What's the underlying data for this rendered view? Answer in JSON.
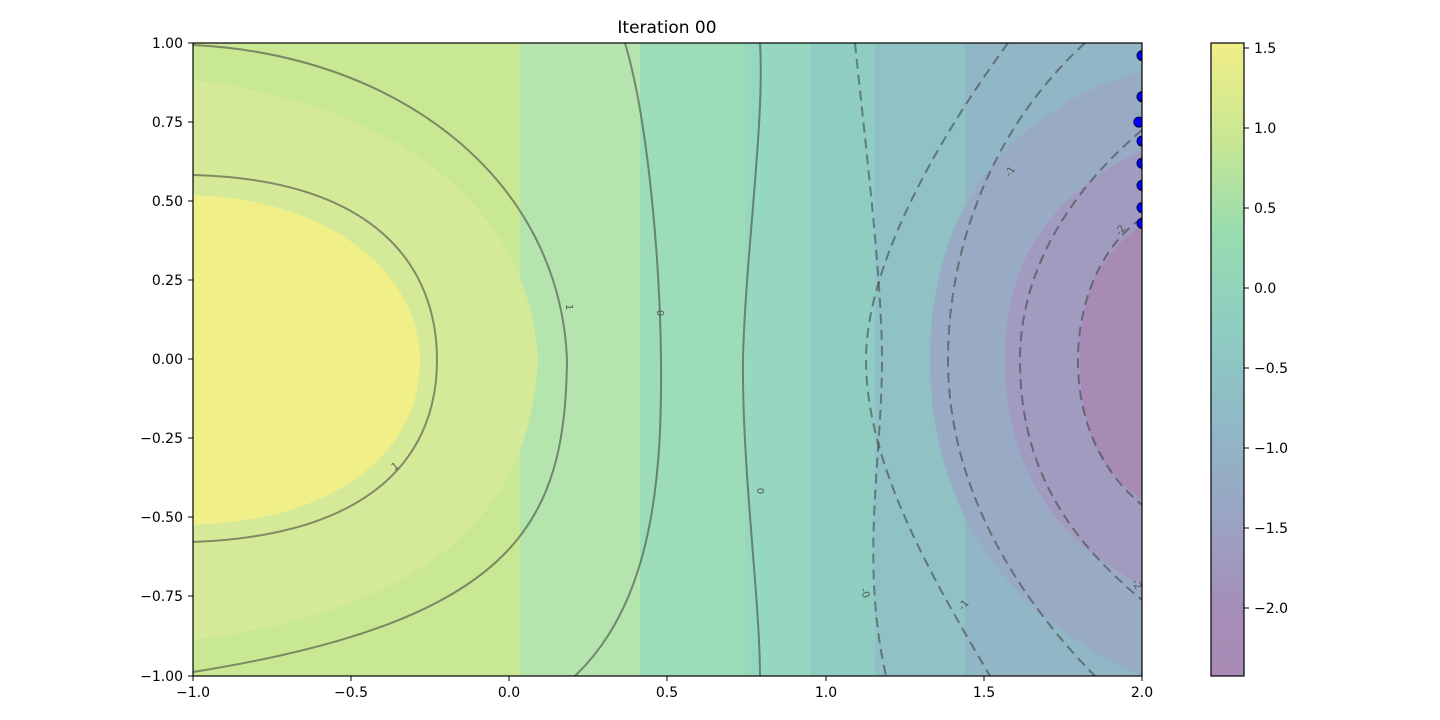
{
  "chart_data": {
    "type": "heatmap",
    "title": "Iteration 00",
    "xlabel": "",
    "ylabel": "",
    "xlim": [
      -1.0,
      2.0
    ],
    "ylim": [
      -1.0,
      1.0
    ],
    "x_ticks": [
      "−1.0",
      "−0.5",
      "0.0",
      "0.5",
      "1.0",
      "1.5",
      "2.0"
    ],
    "y_ticks": [
      "1.00",
      "0.75",
      "0.50",
      "0.25",
      "0.00",
      "−0.25",
      "−0.50",
      "−0.75",
      "−1.00"
    ],
    "colorbar": {
      "colormap": "viridis",
      "alpha": 0.5,
      "range": [
        -2.4,
        1.55
      ],
      "ticks": [
        "1.5",
        "1.0",
        "0.5",
        "0.0",
        "−0.5",
        "−1.0",
        "−1.5",
        "−2.0"
      ]
    },
    "contour_levels": [
      -2,
      -1,
      0,
      1
    ],
    "contour_labels": [
      "1",
      "1",
      "0",
      "0",
      "0",
      "-1",
      "-1",
      "-2",
      "-2",
      "-0"
    ],
    "colors": {
      "solid_contour": "#3b3b3b",
      "dashed_contour": "#3b3b3b",
      "points": "#0000ff"
    },
    "points": [
      {
        "x": 2.0,
        "y": 0.96
      },
      {
        "x": 2.0,
        "y": 0.83
      },
      {
        "x": 1.99,
        "y": 0.75
      },
      {
        "x": 2.0,
        "y": 0.69
      },
      {
        "x": 2.0,
        "y": 0.62
      },
      {
        "x": 2.0,
        "y": 0.55
      },
      {
        "x": 2.0,
        "y": 0.48
      },
      {
        "x": 2.0,
        "y": 0.43
      }
    ]
  }
}
